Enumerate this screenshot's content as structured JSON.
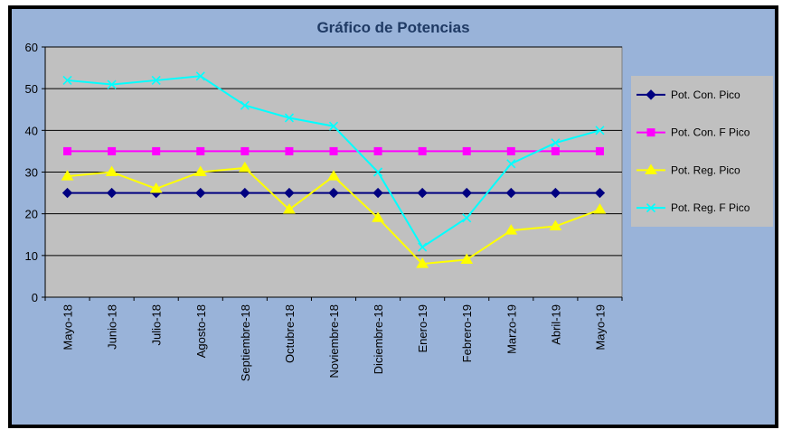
{
  "chart_data": {
    "type": "line",
    "title": "Gráfico de Potencias",
    "xlabel": "",
    "ylabel": "",
    "ylim": [
      0,
      60
    ],
    "yticks": [
      0,
      10,
      20,
      30,
      40,
      50,
      60
    ],
    "grid": "horizontal",
    "legend_position": "right",
    "categories": [
      "Mayo-18",
      "Junio-18",
      "Julio-18",
      "Agosto-18",
      "Septiembre-18",
      "Octubre-18",
      "Noviembre-18",
      "Diciembre-18",
      "Enero-19",
      "Febrero-19",
      "Marzo-19",
      "Abril-19",
      "Mayo-19"
    ],
    "series": [
      {
        "name": "Pot. Con. Pico",
        "color": "#000080",
        "marker": "diamond",
        "values": [
          25,
          25,
          25,
          25,
          25,
          25,
          25,
          25,
          25,
          25,
          25,
          25,
          25
        ]
      },
      {
        "name": "Pot. Con. F Pico",
        "color": "#ff00ff",
        "marker": "square",
        "values": [
          35,
          35,
          35,
          35,
          35,
          35,
          35,
          35,
          35,
          35,
          35,
          35,
          35
        ]
      },
      {
        "name": "Pot. Reg. Pico",
        "color": "#ffff00",
        "marker": "triangle",
        "values": [
          29,
          30,
          26,
          30,
          31,
          21,
          29,
          19,
          8,
          9,
          16,
          17,
          21
        ]
      },
      {
        "name": "Pot. Reg. F Pico",
        "color": "#00ffff",
        "marker": "x",
        "values": [
          52,
          51,
          52,
          53,
          46,
          43,
          41,
          30,
          12,
          19,
          32,
          37,
          40
        ]
      }
    ],
    "colors": {
      "outer_background": "#99b3d9",
      "plot_background": "#c0c0c0",
      "border": "#000000",
      "legend_background": "#c0c0c0"
    }
  }
}
